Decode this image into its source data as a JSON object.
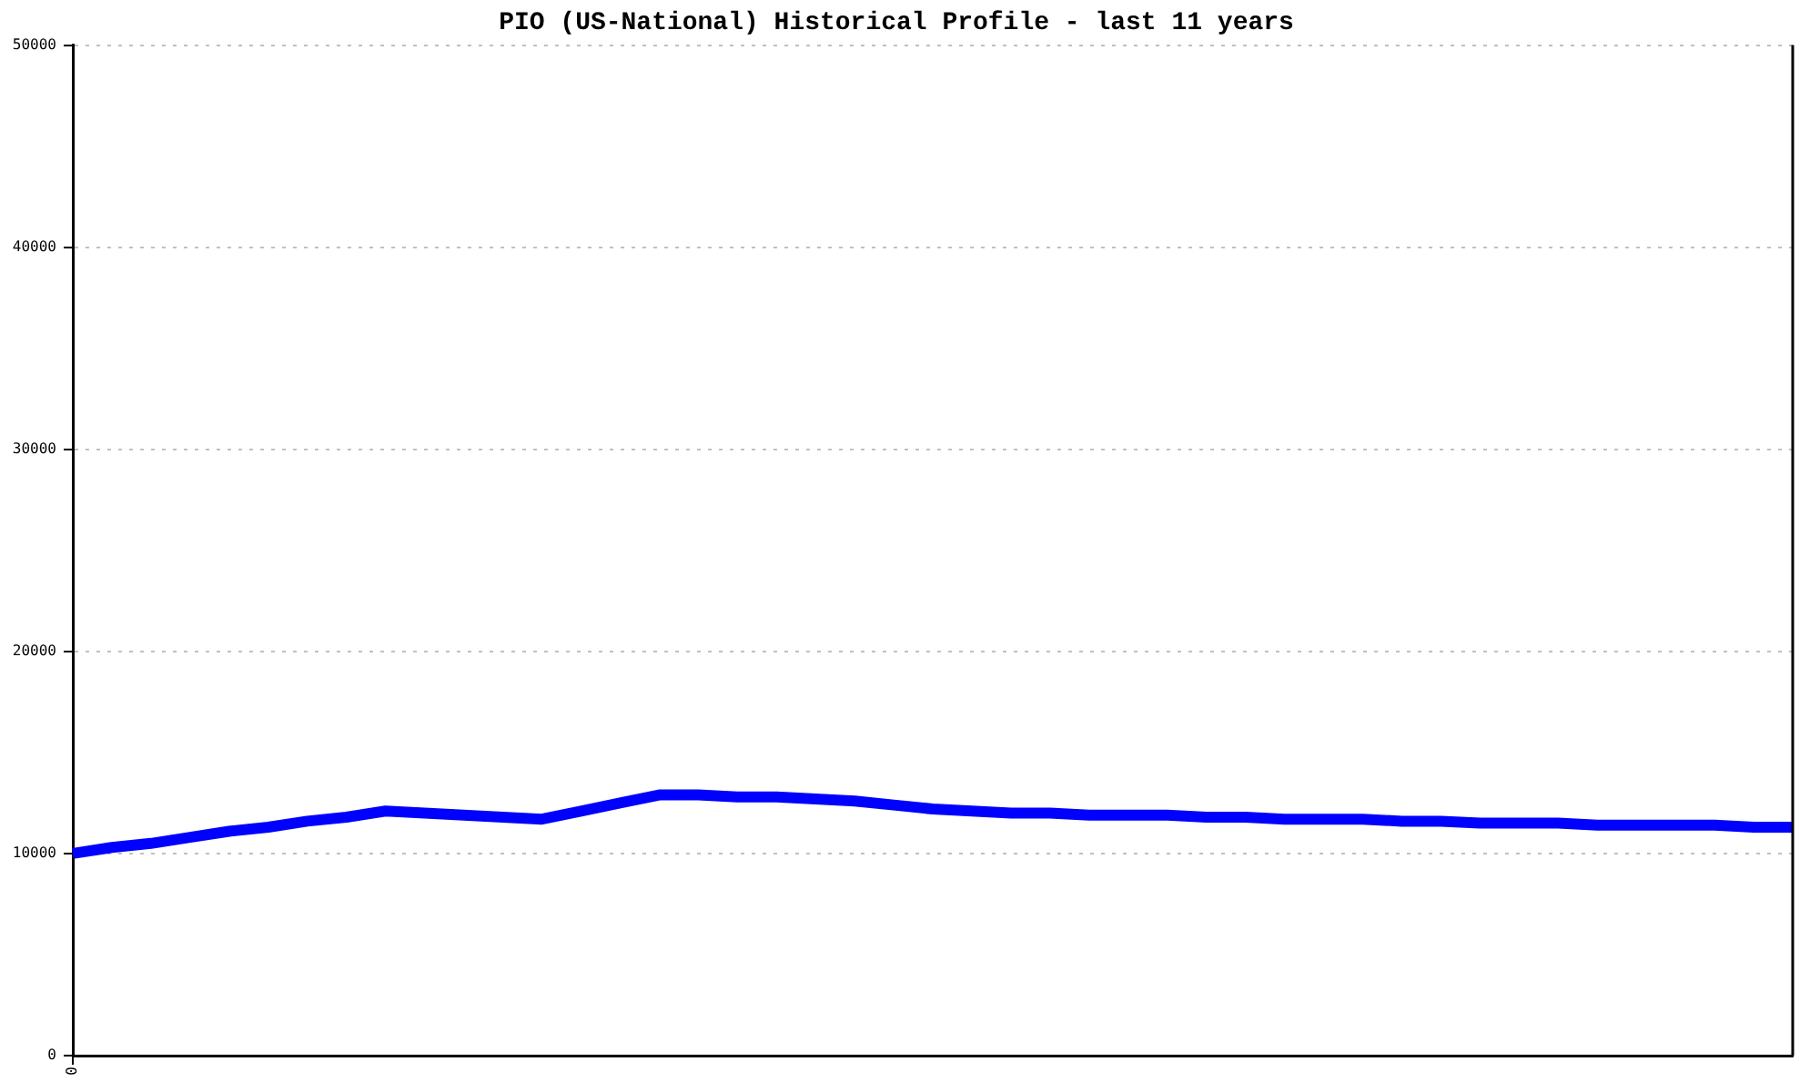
{
  "chart_data": {
    "type": "line",
    "title": "PIO (US-National) Historical Profile - last 11 years",
    "categories": [
      "0",
      null,
      null,
      null,
      null,
      null,
      null,
      null,
      null,
      null,
      null,
      null,
      null,
      null,
      null,
      null,
      null,
      null,
      null,
      null,
      null,
      null,
      null,
      null,
      null,
      null,
      null,
      null,
      null,
      null,
      null,
      null,
      null,
      null,
      null,
      null,
      null,
      null,
      null,
      null,
      null,
      null,
      null,
      null,
      null
    ],
    "series": [
      {
        "color": "#0000ff",
        "values": [
          10000,
          10300,
          10500,
          10800,
          11100,
          11300,
          11600,
          11800,
          12100,
          12000,
          11900,
          11800,
          11700,
          12100,
          12500,
          12900,
          12900,
          12800,
          12800,
          12700,
          12600,
          12400,
          12200,
          12100,
          12000,
          12000,
          11900,
          11900,
          11900,
          11800,
          11800,
          11700,
          11700,
          11700,
          11600,
          11600,
          11500,
          11500,
          11500,
          11400,
          11400,
          11400,
          11400,
          11300,
          11300
        ]
      }
    ],
    "ylim": [
      0,
      50000
    ],
    "yticks": [
      0,
      10000,
      20000,
      30000,
      40000,
      50000
    ],
    "grid": "y",
    "legend": false,
    "marker": "none",
    "line_style": "solid"
  }
}
